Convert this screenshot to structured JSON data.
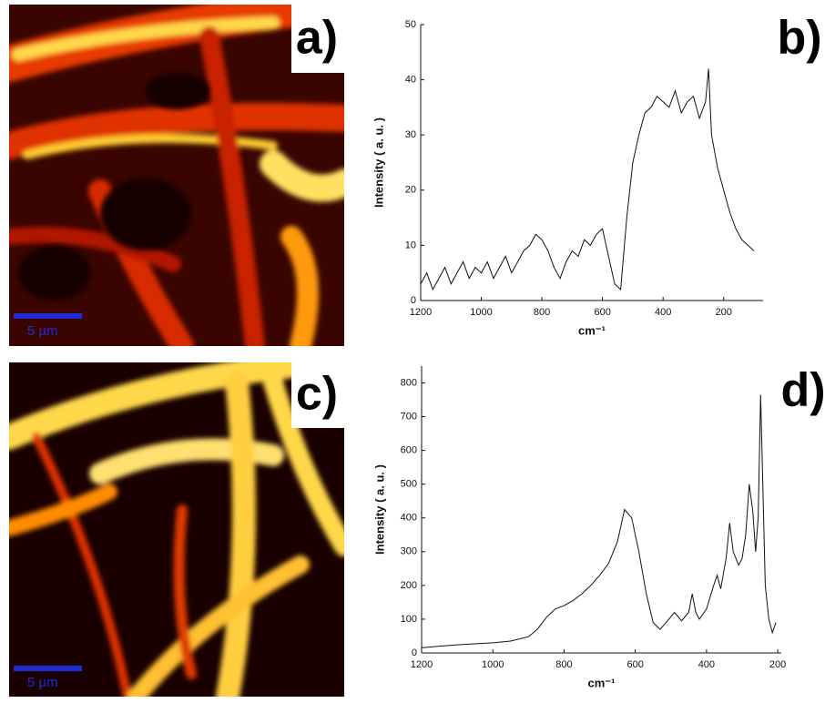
{
  "images": [
    {
      "label": "a)",
      "scale_bar": "5 µm"
    },
    {
      "label": "c)",
      "scale_bar": "5 µm"
    }
  ],
  "chart_data": [
    {
      "type": "line",
      "label": "b)",
      "y_label": "Intensity ( a. u. )",
      "x_label": "cm⁻¹",
      "x": [
        1200,
        1180,
        1160,
        1140,
        1120,
        1100,
        1080,
        1060,
        1040,
        1020,
        1000,
        980,
        960,
        940,
        920,
        900,
        880,
        860,
        840,
        820,
        800,
        780,
        760,
        740,
        720,
        700,
        680,
        660,
        640,
        620,
        600,
        580,
        560,
        540,
        520,
        500,
        480,
        460,
        440,
        420,
        400,
        380,
        360,
        340,
        320,
        300,
        280,
        260,
        250,
        240,
        220,
        200,
        180,
        160,
        140,
        120,
        100
      ],
      "series": [
        {
          "color": "#111111",
          "values": [
            3,
            5,
            2,
            4,
            6,
            3,
            5,
            7,
            4,
            6,
            5,
            7,
            4,
            6,
            8,
            5,
            7,
            9,
            10,
            12,
            11,
            9,
            6,
            4,
            7,
            9,
            8,
            11,
            10,
            12,
            13,
            8,
            3,
            2,
            15,
            25,
            30,
            34,
            35,
            37,
            36,
            35,
            38,
            34,
            36,
            37,
            33,
            36,
            42,
            30,
            24,
            20,
            16,
            13,
            11,
            10,
            9
          ]
        }
      ],
      "xlim": [
        1200,
        70
      ],
      "xticks": [
        1200,
        1000,
        800,
        600,
        400,
        200
      ],
      "ylim": [
        0,
        50
      ],
      "yticks": [
        0,
        10,
        20,
        30,
        40,
        50
      ]
    },
    {
      "type": "line",
      "label": "d)",
      "y_label": "Intensity ( a. u. )",
      "x_label": "cm⁻¹",
      "x": [
        1200,
        1150,
        1100,
        1050,
        1000,
        950,
        900,
        875,
        850,
        825,
        800,
        775,
        750,
        725,
        700,
        675,
        650,
        630,
        610,
        590,
        570,
        550,
        530,
        510,
        490,
        470,
        450,
        440,
        430,
        420,
        400,
        380,
        370,
        360,
        345,
        335,
        325,
        310,
        300,
        290,
        280,
        270,
        262,
        255,
        248,
        242,
        235,
        225,
        215,
        205
      ],
      "series": [
        {
          "color": "#111111",
          "values": [
            15,
            20,
            24,
            27,
            30,
            35,
            48,
            70,
            105,
            130,
            140,
            155,
            175,
            200,
            230,
            265,
            330,
            425,
            400,
            300,
            180,
            90,
            70,
            95,
            120,
            95,
            120,
            175,
            120,
            100,
            130,
            200,
            230,
            190,
            280,
            385,
            300,
            260,
            280,
            350,
            500,
            420,
            300,
            400,
            765,
            500,
            200,
            100,
            60,
            90
          ]
        }
      ],
      "xlim": [
        1200,
        190
      ],
      "xticks": [
        1200,
        1000,
        800,
        600,
        400,
        200
      ],
      "ylim": [
        0,
        850
      ],
      "yticks": [
        0,
        100,
        200,
        300,
        400,
        500,
        600,
        700,
        800
      ]
    }
  ]
}
